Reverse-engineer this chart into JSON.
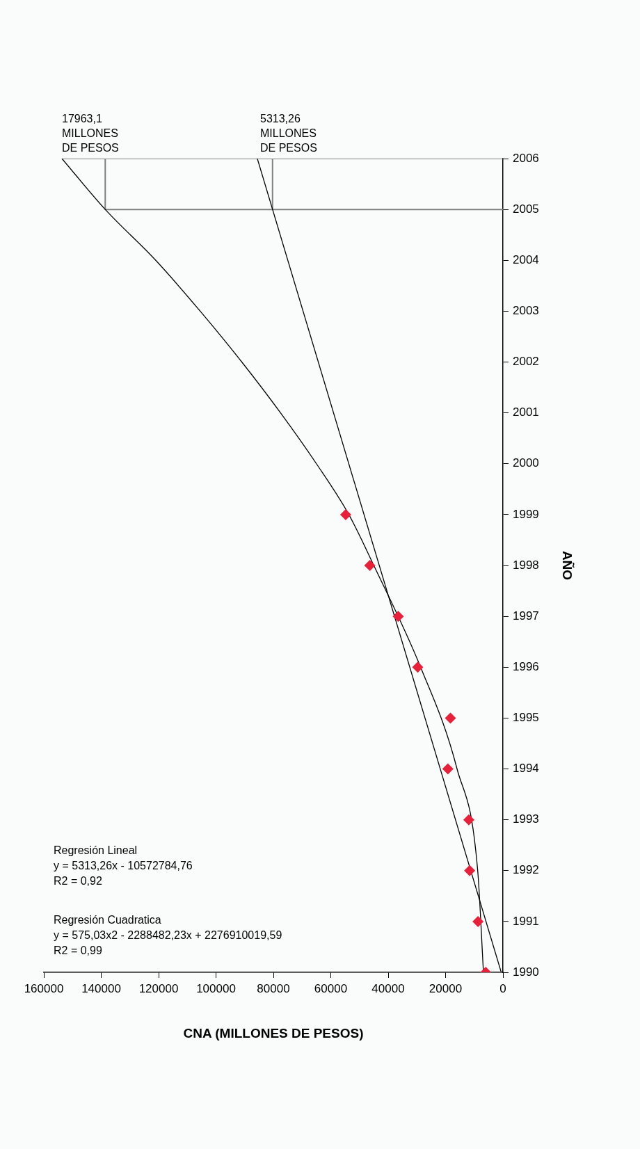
{
  "chart_data": {
    "type": "scatter",
    "xlabel": "CNA (MILLONES DE PESOS)",
    "ylabel": "AÑO",
    "xlim": [
      160000,
      0
    ],
    "xticks": [
      0,
      20000,
      40000,
      60000,
      80000,
      100000,
      120000,
      140000,
      160000
    ],
    "ylim": [
      1990,
      2006
    ],
    "yticks": [
      1990,
      1991,
      1992,
      1993,
      1994,
      1995,
      1996,
      1997,
      1998,
      1999,
      2000,
      2001,
      2002,
      2003,
      2004,
      2005,
      2006
    ],
    "grid": false,
    "legend": false,
    "series": [
      {
        "type": "scatter",
        "x": [
          6000,
          8700,
          11600,
          11900,
          19200,
          18300,
          29700,
          36500,
          46400,
          54800
        ],
        "values": [
          1990,
          1991,
          1992,
          1993,
          1994,
          1995,
          1996,
          1997,
          1998,
          1999
        ],
        "color": "#e8203a",
        "marker": "diamond"
      },
      {
        "type": "line",
        "x": [
          600,
          85600
        ],
        "values": [
          1990,
          2006
        ],
        "color": "#000000"
      },
      {
        "type": "line",
        "x": [
          6800,
          8800,
          16000,
          28700,
          45000,
          53700,
          65000,
          77500,
          91000,
          105500,
          121000,
          138600,
          153700
        ],
        "values": [
          1990,
          1992,
          1994,
          1996,
          1998,
          1999,
          2000,
          2001,
          2002,
          2003,
          2004,
          2005,
          2006
        ],
        "color": "#000000"
      },
      {
        "type": "line",
        "x": [
          0,
          138600,
          138600
        ],
        "values": [
          2005,
          2005,
          2006
        ],
        "color": "#808080"
      },
      {
        "type": "line",
        "x": [
          0,
          153700
        ],
        "values": [
          2006,
          2006
        ],
        "color": "#808080"
      },
      {
        "type": "line",
        "x": [
          80300,
          80300
        ],
        "values": [
          2005,
          2006
        ],
        "color": "#808080"
      }
    ],
    "annotations": [
      "Regresión Lineal\ny = 5313,26x - 10572784,76\nR2 = 0,92",
      "Regresión Cuadratica\ny = 575,03x2 - 2288482,23x + 2276910019,59\nR2 = 0,99",
      {
        "text": "17963,1\nMILLONES\nDE PESOS",
        "x": 153700,
        "y": 2006
      },
      {
        "text": "5313,26\nMILLONES\nDE PESOS",
        "x": 84600,
        "y": 2006
      }
    ]
  }
}
